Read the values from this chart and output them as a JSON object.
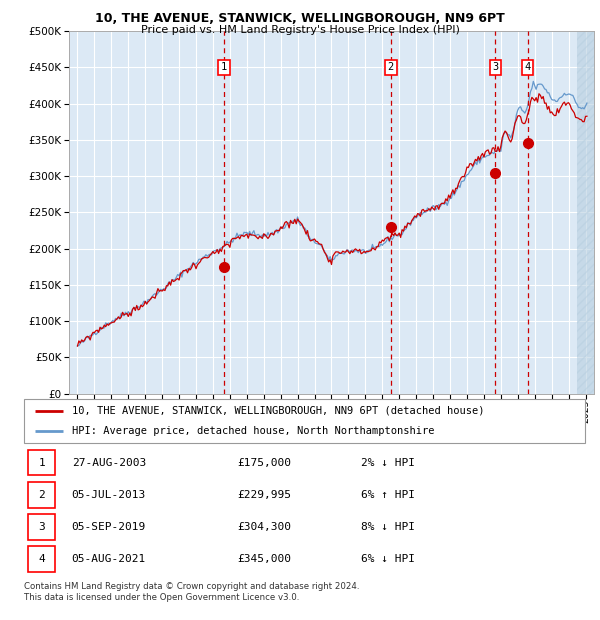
{
  "title1": "10, THE AVENUE, STANWICK, WELLINGBOROUGH, NN9 6PT",
  "title2": "Price paid vs. HM Land Registry's House Price Index (HPI)",
  "legend_line1": "10, THE AVENUE, STANWICK, WELLINGBOROUGH, NN9 6PT (detached house)",
  "legend_line2": "HPI: Average price, detached house, North Northamptonshire",
  "transactions": [
    {
      "num": 1,
      "date": "27-AUG-2003",
      "price": 175000,
      "pct": "2%",
      "dir": "↓",
      "year": 2003.65
    },
    {
      "num": 2,
      "date": "05-JUL-2013",
      "price": 229995,
      "pct": "6%",
      "dir": "↑",
      "year": 2013.5
    },
    {
      "num": 3,
      "date": "05-SEP-2019",
      "price": 304300,
      "pct": "8%",
      "dir": "↓",
      "year": 2019.67
    },
    {
      "num": 4,
      "date": "05-AUG-2021",
      "price": 345000,
      "pct": "6%",
      "dir": "↓",
      "year": 2021.58
    }
  ],
  "hpi_color": "#6699cc",
  "price_color": "#cc0000",
  "marker_color": "#cc0000",
  "vline_color": "#cc0000",
  "bg_color": "#dce9f5",
  "hatch_color": "#b8cfe0",
  "grid_color": "#ffffff",
  "ylim": [
    0,
    500000
  ],
  "yticks": [
    0,
    50000,
    100000,
    150000,
    200000,
    250000,
    300000,
    350000,
    400000,
    450000,
    500000
  ],
  "xlim_start": 1994.5,
  "xlim_end": 2025.5,
  "footer": "Contains HM Land Registry data © Crown copyright and database right 2024.\nThis data is licensed under the Open Government Licence v3.0."
}
